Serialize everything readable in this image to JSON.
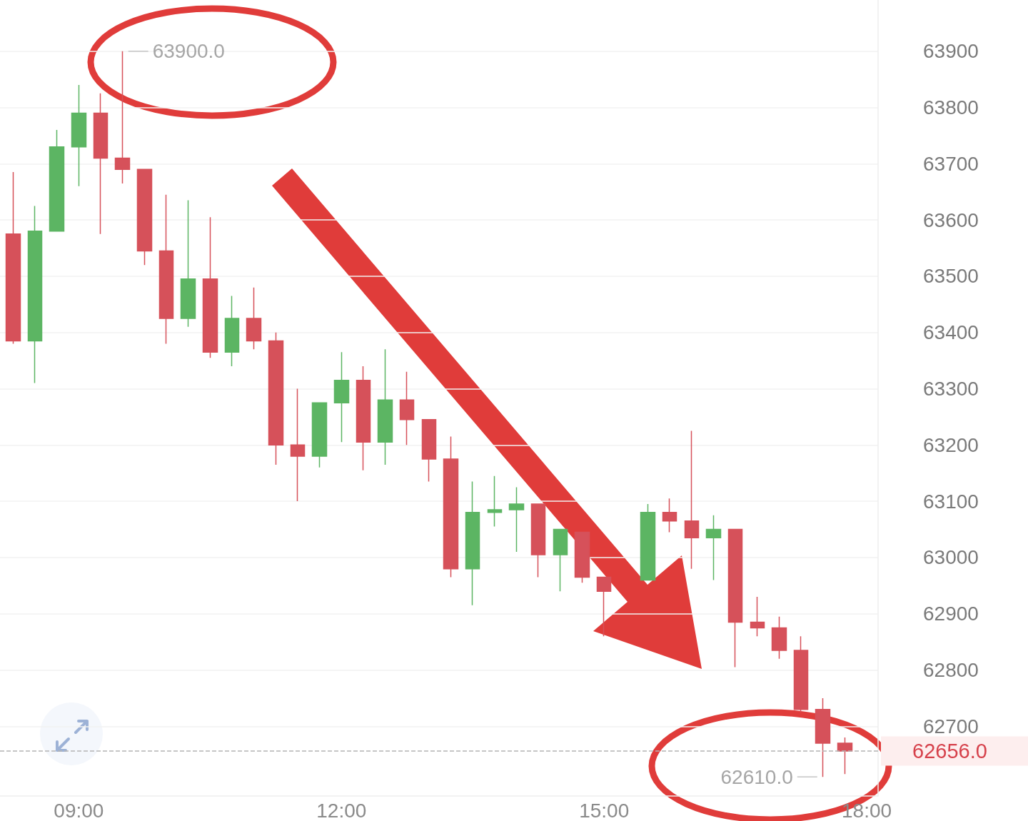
{
  "chart_data": {
    "type": "candlestick",
    "x": [
      8.25,
      8.5,
      8.75,
      9,
      9.25,
      9.5,
      9.75,
      10,
      10.25,
      10.5,
      10.75,
      11,
      11.25,
      11.5,
      11.75,
      12,
      12.25,
      12.5,
      12.75,
      13,
      13.25,
      13.5,
      13.75,
      14,
      14.25,
      14.5,
      14.75,
      15,
      15.5,
      15.75,
      16,
      16.25,
      16.5,
      16.75,
      17,
      17.25,
      17.5,
      17.75
    ],
    "ohlc": [
      [
        63575,
        63685,
        63380,
        63385
      ],
      [
        63385,
        63625,
        63310,
        63580
      ],
      [
        63580,
        63760,
        63580,
        63730
      ],
      [
        63730,
        63840,
        63660,
        63790
      ],
      [
        63790,
        63825,
        63575,
        63710
      ],
      [
        63710,
        63900,
        63665,
        63690
      ],
      [
        63690,
        63690,
        63520,
        63545
      ],
      [
        63545,
        63645,
        63380,
        63425
      ],
      [
        63425,
        63635,
        63410,
        63495
      ],
      [
        63495,
        63605,
        63355,
        63365
      ],
      [
        63365,
        63465,
        63340,
        63425
      ],
      [
        63425,
        63480,
        63370,
        63385
      ],
      [
        63385,
        63400,
        63165,
        63200
      ],
      [
        63200,
        63300,
        63100,
        63180
      ],
      [
        63180,
        63275,
        63160,
        63275
      ],
      [
        63275,
        63365,
        63205,
        63315
      ],
      [
        63315,
        63340,
        63155,
        63205
      ],
      [
        63205,
        63370,
        63165,
        63280
      ],
      [
        63280,
        63330,
        63200,
        63245
      ],
      [
        63245,
        63245,
        63135,
        63175
      ],
      [
        63175,
        63215,
        62965,
        62980
      ],
      [
        62980,
        63135,
        62915,
        63080
      ],
      [
        63080,
        63145,
        63055,
        63085
      ],
      [
        63085,
        63125,
        63010,
        63095
      ],
      [
        63095,
        63095,
        62965,
        63005
      ],
      [
        63005,
        63050,
        62940,
        63050
      ],
      [
        63045,
        63045,
        62955,
        62965
      ],
      [
        62965,
        62965,
        62860,
        62940
      ],
      [
        62960,
        63095,
        62960,
        63080
      ],
      [
        63080,
        63105,
        63045,
        63065
      ],
      [
        63065,
        63225,
        62980,
        63035
      ],
      [
        63035,
        63075,
        62960,
        63050
      ],
      [
        63050,
        63050,
        62805,
        62885
      ],
      [
        62885,
        62930,
        62860,
        62875
      ],
      [
        62875,
        62895,
        62820,
        62835
      ],
      [
        62835,
        62860,
        62725,
        62730
      ],
      [
        62730,
        62750,
        62610,
        62670
      ],
      [
        62670,
        62680,
        62615,
        62656
      ]
    ],
    "colors": [
      "#d6515a",
      "#5cb563",
      "#5cb563",
      "#5cb563",
      "#d6515a",
      "#d6515a",
      "#d6515a",
      "#d6515a",
      "#5cb563",
      "#d6515a",
      "#5cb563",
      "#d6515a",
      "#d6515a",
      "#d6515a",
      "#5cb563",
      "#5cb563",
      "#d6515a",
      "#5cb563",
      "#d6515a",
      "#d6515a",
      "#d6515a",
      "#5cb563",
      "#5cb563",
      "#5cb563",
      "#d6515a",
      "#5cb563",
      "#d6515a",
      "#d6515a",
      "#5cb563",
      "#d6515a",
      "#d6515a",
      "#5cb563",
      "#d6515a",
      "#d6515a",
      "#d6515a",
      "#d6515a",
      "#d6515a",
      "#d6515a"
    ],
    "xlim": [
      8.1,
      18.13
    ],
    "xticks": [
      {
        "value": 9,
        "label": "09:00"
      },
      {
        "value": 12,
        "label": "12:00"
      },
      {
        "value": 15,
        "label": "15:00"
      },
      {
        "value": 18,
        "label": "18:00"
      }
    ],
    "ylim": [
      62576,
      63991
    ],
    "yticks": [
      62700,
      62800,
      62900,
      63000,
      63100,
      63200,
      63300,
      63400,
      63500,
      63600,
      63700,
      63800,
      63900
    ],
    "grid": "y",
    "ref_lines": [
      {
        "axis": "y",
        "value": 62656,
        "label": "62656.0",
        "color": "#b4b4b4",
        "line_style": "dashed"
      }
    ],
    "annotations": [
      "63900.0",
      "62610.0"
    ]
  }
}
